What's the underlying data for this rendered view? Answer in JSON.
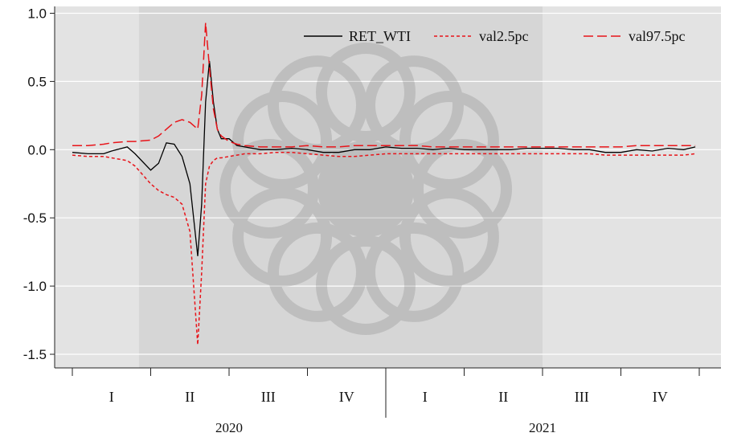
{
  "chart_data": {
    "type": "line",
    "title": "",
    "xlabel": "",
    "ylabel": "",
    "ylim": [
      -1.6,
      1.05
    ],
    "xlim": [
      0,
      8
    ],
    "y_ticks": [
      1.0,
      0.5,
      0.0,
      -0.5,
      -1.0,
      -1.5
    ],
    "y_tick_labels": [
      "1.0",
      "0.5",
      "0.0",
      "-0.5",
      "-1.0",
      "-1.5"
    ],
    "quarter_labels": [
      "I",
      "II",
      "III",
      "IV",
      "I",
      "II",
      "III",
      "IV"
    ],
    "year_labels": [
      "2020",
      "2021"
    ],
    "grid": true,
    "legend_position": "top-right",
    "x": [
      0,
      0.2,
      0.4,
      0.5,
      0.7,
      0.8,
      1.0,
      1.1,
      1.2,
      1.3,
      1.4,
      1.5,
      1.6,
      1.65,
      1.7,
      1.75,
      1.8,
      1.85,
      1.9,
      2.0,
      2.1,
      2.2,
      2.4,
      2.6,
      2.8,
      3.0,
      3.2,
      3.4,
      3.6,
      3.8,
      4.0,
      4.2,
      4.4,
      4.6,
      4.8,
      5.0,
      5.2,
      5.4,
      5.6,
      5.8,
      6.0,
      6.2,
      6.4,
      6.6,
      6.8,
      7.0,
      7.2,
      7.4,
      7.6,
      7.8,
      7.95
    ],
    "series": [
      {
        "name": "RET_WTI",
        "color": "#000000",
        "dash": "solid",
        "values": [
          -0.02,
          -0.03,
          -0.03,
          -0.01,
          0.02,
          -0.03,
          -0.15,
          -0.1,
          0.05,
          0.04,
          -0.05,
          -0.25,
          -0.78,
          -0.4,
          0.35,
          0.65,
          0.35,
          0.15,
          0.08,
          0.08,
          0.03,
          0.02,
          0.0,
          0.0,
          0.01,
          0.0,
          -0.02,
          -0.02,
          0.0,
          0.0,
          0.02,
          0.01,
          0.01,
          0.0,
          0.01,
          0.0,
          0.0,
          0.0,
          0.0,
          0.01,
          0.01,
          0.01,
          0.0,
          0.0,
          -0.02,
          -0.02,
          0.0,
          -0.01,
          0.01,
          0.0,
          0.02
        ]
      },
      {
        "name": "val2.5pc",
        "color": "#e8141a",
        "dash": "short",
        "values": [
          -0.04,
          -0.05,
          -0.05,
          -0.06,
          -0.08,
          -0.12,
          -0.25,
          -0.3,
          -0.33,
          -0.35,
          -0.4,
          -0.6,
          -1.43,
          -0.9,
          -0.25,
          -0.12,
          -0.08,
          -0.06,
          -0.06,
          -0.05,
          -0.04,
          -0.03,
          -0.03,
          -0.02,
          -0.02,
          -0.03,
          -0.04,
          -0.05,
          -0.05,
          -0.04,
          -0.03,
          -0.03,
          -0.03,
          -0.03,
          -0.03,
          -0.03,
          -0.03,
          -0.03,
          -0.03,
          -0.03,
          -0.03,
          -0.03,
          -0.03,
          -0.03,
          -0.04,
          -0.04,
          -0.04,
          -0.04,
          -0.04,
          -0.04,
          -0.03
        ]
      },
      {
        "name": "val97.5pc",
        "color": "#e8141a",
        "dash": "long",
        "values": [
          0.03,
          0.03,
          0.04,
          0.05,
          0.06,
          0.06,
          0.07,
          0.1,
          0.15,
          0.2,
          0.22,
          0.2,
          0.15,
          0.4,
          0.93,
          0.6,
          0.3,
          0.15,
          0.1,
          0.06,
          0.04,
          0.03,
          0.02,
          0.02,
          0.02,
          0.03,
          0.02,
          0.02,
          0.03,
          0.03,
          0.03,
          0.03,
          0.03,
          0.02,
          0.02,
          0.02,
          0.02,
          0.02,
          0.02,
          0.02,
          0.02,
          0.02,
          0.02,
          0.02,
          0.02,
          0.02,
          0.03,
          0.03,
          0.03,
          0.03,
          0.03
        ]
      }
    ]
  }
}
